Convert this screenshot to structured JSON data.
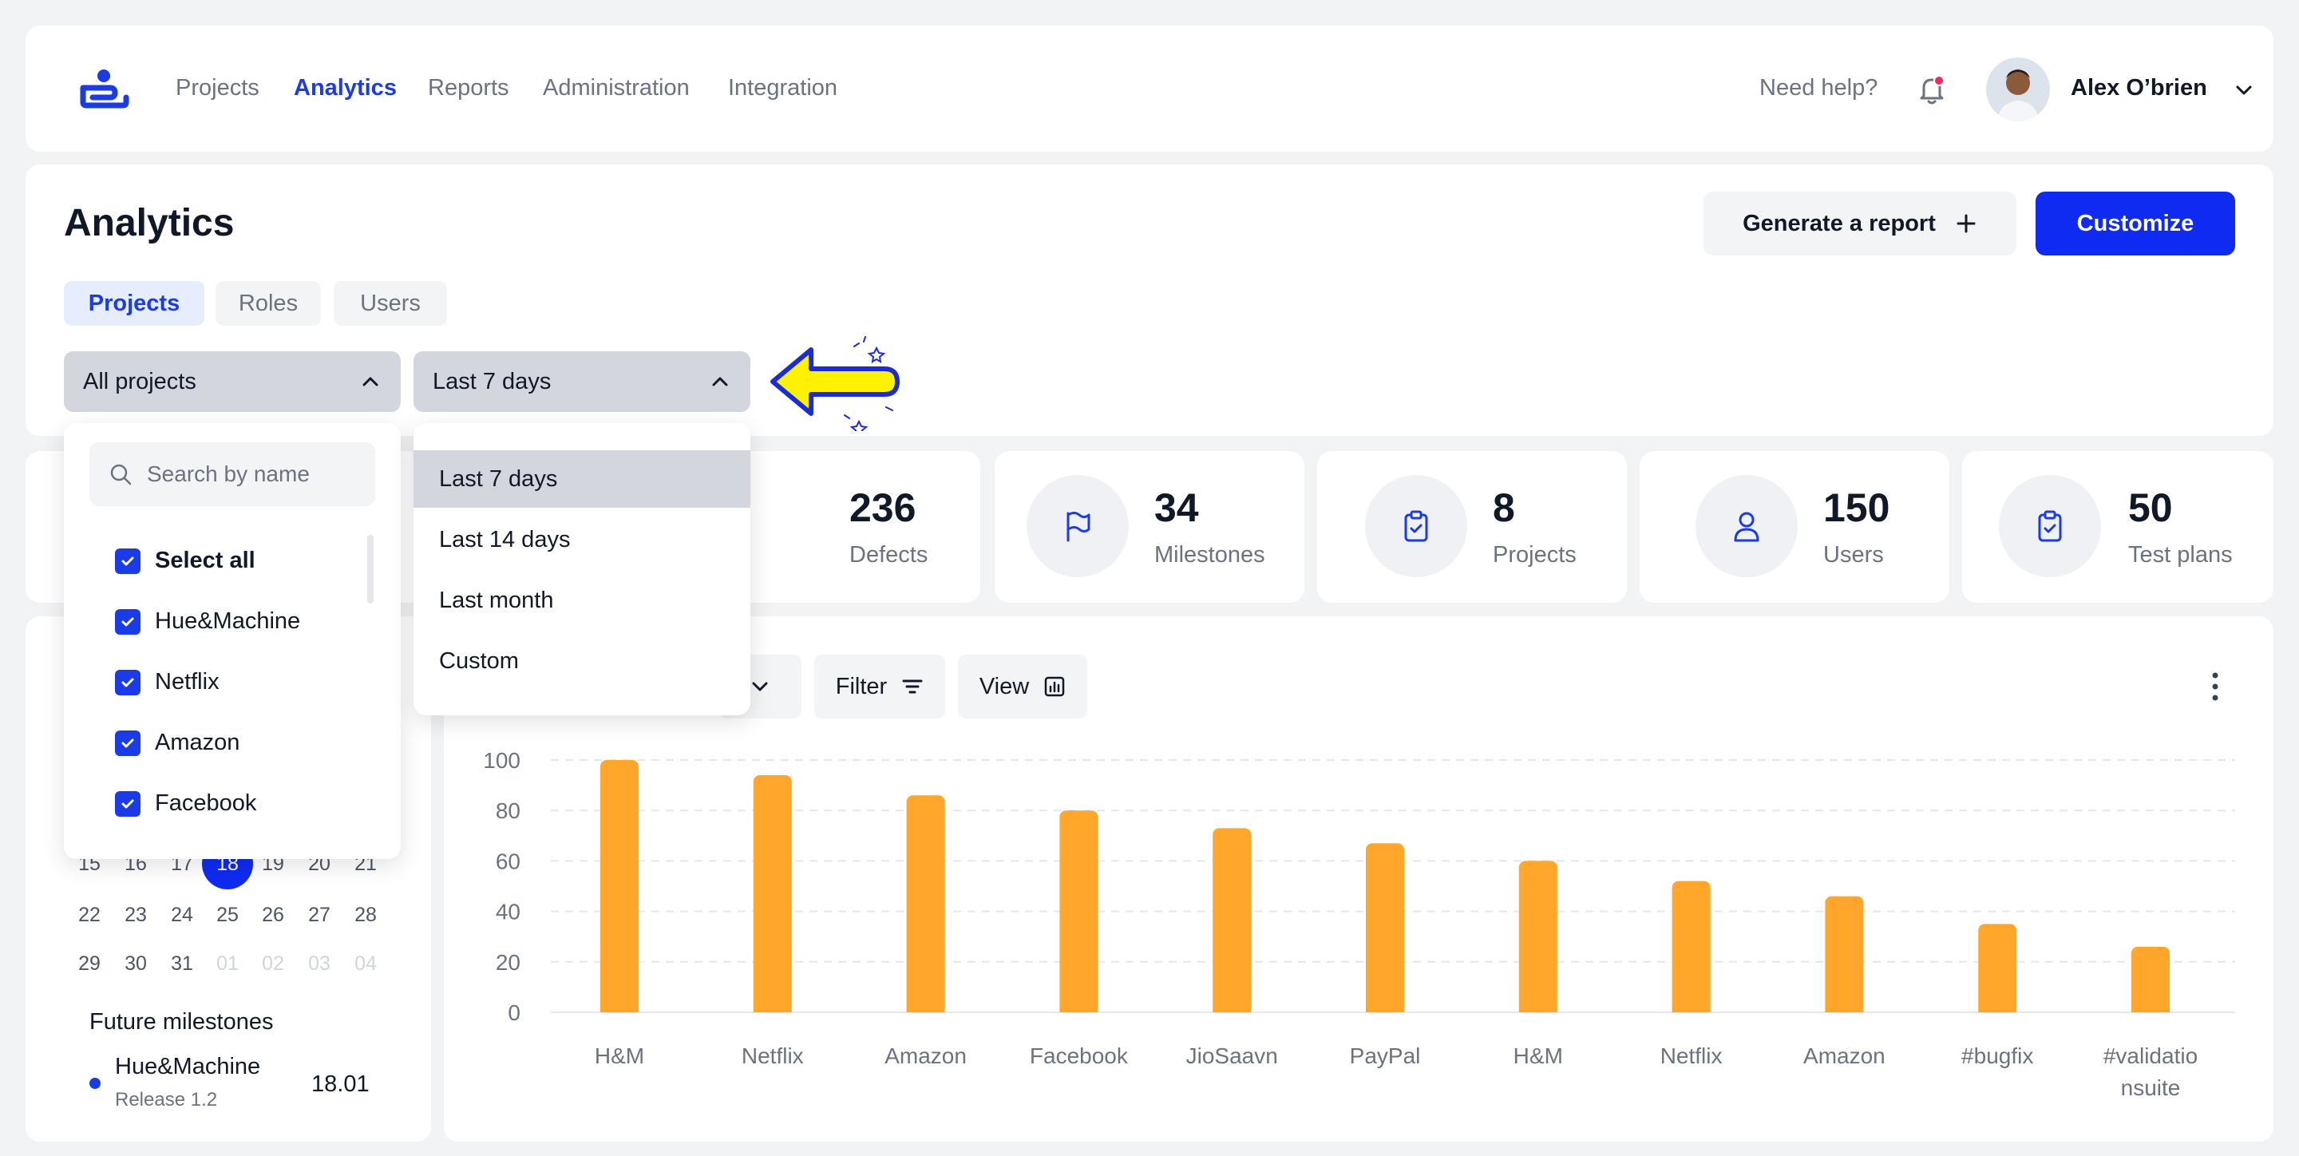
{
  "nav": {
    "links": [
      "Projects",
      "Analytics",
      "Reports",
      "Administration",
      "Integration"
    ],
    "help": "Need help?",
    "user_name": "Alex O’brien"
  },
  "header": {
    "title": "Analytics",
    "generate_label": "Generate a report",
    "customize_label": "Customize",
    "tabs": [
      "Projects",
      "Roles",
      "Users"
    ],
    "project_select": "All projects",
    "range_select": "Last 7 days"
  },
  "project_dropdown": {
    "search_placeholder": "Search by name",
    "items": [
      "Select all",
      "Hue&Machine",
      "Netflix",
      "Amazon",
      "Facebook"
    ]
  },
  "range_dropdown": {
    "options": [
      "Last 7 days",
      "Last 14 days",
      "Last month",
      "Custom"
    ],
    "selected": "Last 7 days"
  },
  "stats": [
    {
      "value": "236",
      "label": "Defects",
      "icon": "bug-icon"
    },
    {
      "value": "34",
      "label": "Milestones",
      "icon": "flag-icon"
    },
    {
      "value": "8",
      "label": "Projects",
      "icon": "clipboard-check-icon"
    },
    {
      "value": "150",
      "label": "Users",
      "icon": "user-icon"
    },
    {
      "value": "50",
      "label": "Test plans",
      "icon": "clipboard-check-icon"
    }
  ],
  "calendar": {
    "rows": [
      [
        "15",
        "16",
        "17",
        "18",
        "19",
        "20",
        "21"
      ],
      [
        "22",
        "23",
        "24",
        "25",
        "26",
        "27",
        "28"
      ],
      [
        "29",
        "30",
        "31",
        "01",
        "02",
        "03",
        "04"
      ]
    ],
    "selected_day": "18"
  },
  "milestones": {
    "title": "Future milestones",
    "items": [
      {
        "name": "Hue&Machine",
        "sub": "Release 1.2",
        "date": "18.01"
      }
    ]
  },
  "chart_toolbar": {
    "filter_label": "Filter",
    "view_label": "View"
  },
  "colors": {
    "accent": "#1B3BE6",
    "bar": "#FFA62B",
    "select_bg": "#D3D6DC"
  },
  "chart_data": {
    "type": "bar",
    "categories": [
      "H&M",
      "Netflix",
      "Amazon",
      "Facebook",
      "JioSaavn",
      "PayPal",
      "H&M",
      "Netflix",
      "Amazon",
      "#bugfix",
      "#validatio nsuite"
    ],
    "values": [
      100,
      94,
      86,
      80,
      73,
      67,
      60,
      52,
      46,
      35,
      26
    ],
    "yticks": [
      "100",
      "80",
      "60",
      "40",
      "20",
      "0"
    ],
    "ylim": [
      0,
      100
    ],
    "grid": true
  }
}
